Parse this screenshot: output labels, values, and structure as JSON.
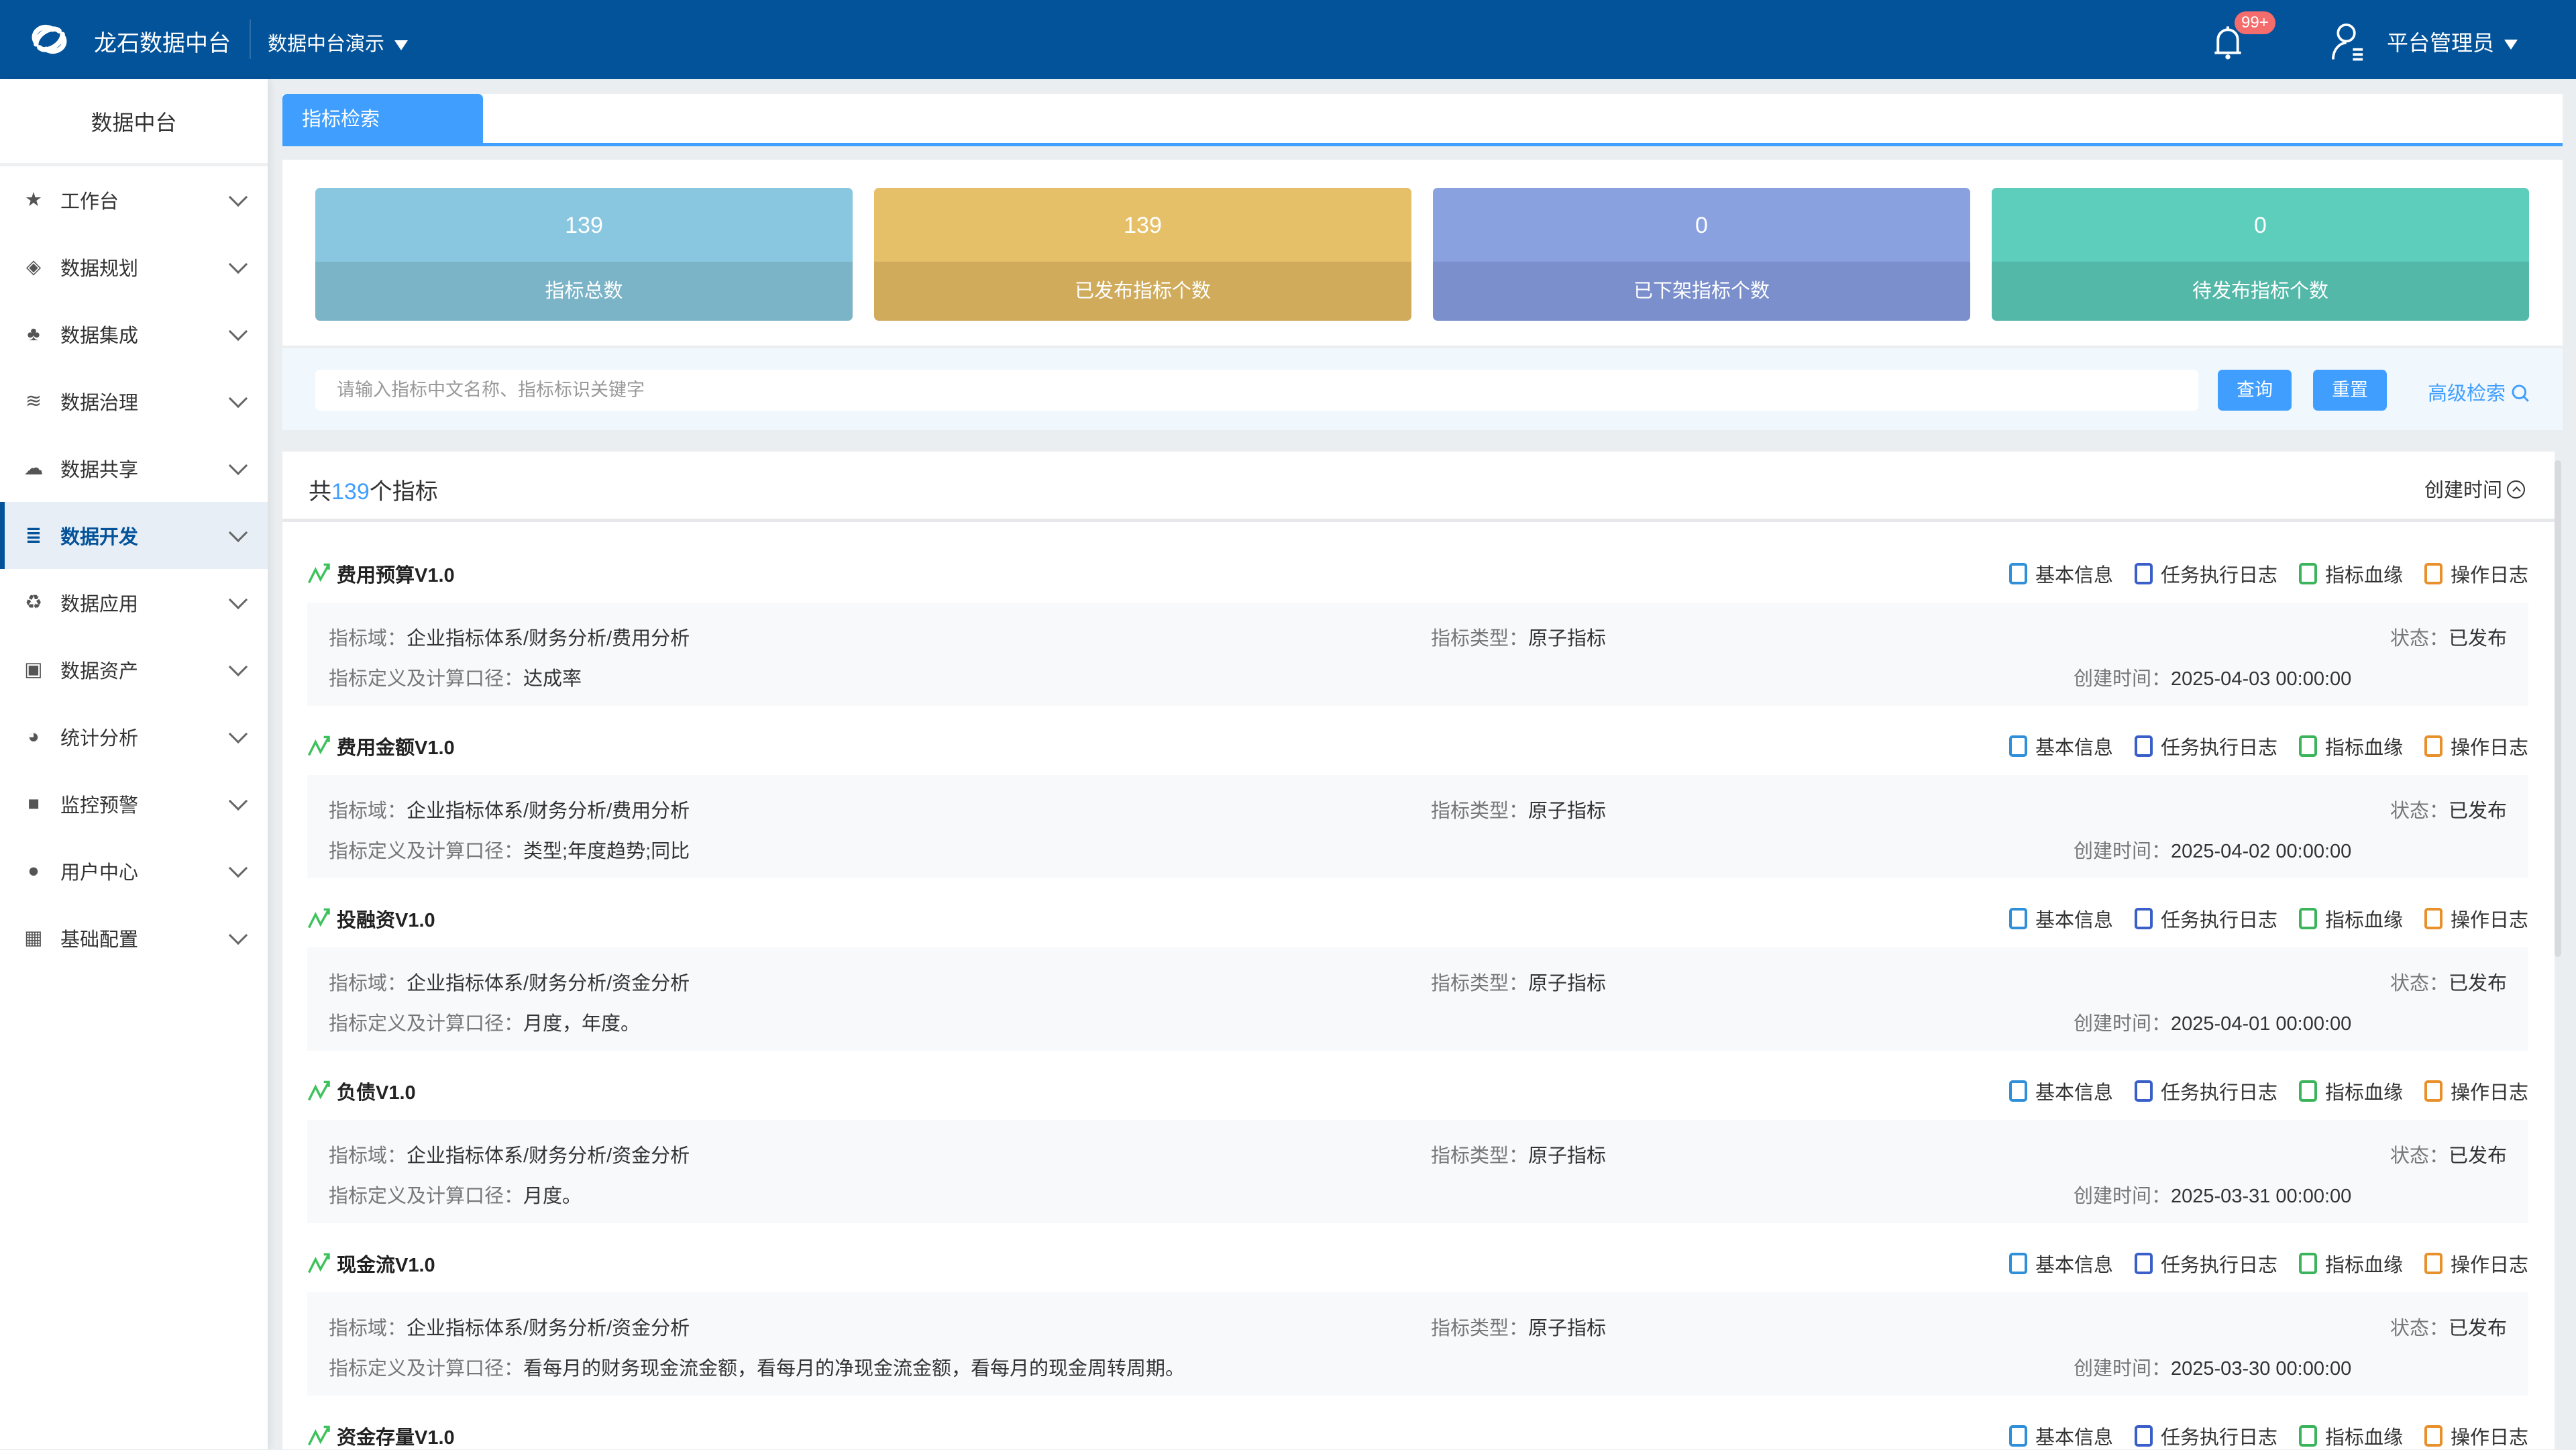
{
  "header": {
    "brand": "龙石数据中台",
    "project": "数据中台演示",
    "notifications_badge": "99+",
    "user": "平台管理员",
    "color": "#03539a"
  },
  "sidebar": {
    "title": "数据中台",
    "items": [
      {
        "label": "工作台",
        "icon": "star-icon"
      },
      {
        "label": "数据规划",
        "icon": "layers-icon"
      },
      {
        "label": "数据集成",
        "icon": "integration-icon"
      },
      {
        "label": "数据治理",
        "icon": "database-icon"
      },
      {
        "label": "数据共享",
        "icon": "cloud-icon"
      },
      {
        "label": "数据开发",
        "icon": "dev-icon",
        "active": true
      },
      {
        "label": "数据应用",
        "icon": "recycle-icon"
      },
      {
        "label": "数据资产",
        "icon": "asset-icon"
      },
      {
        "label": "统计分析",
        "icon": "pie-chart-icon"
      },
      {
        "label": "监控预警",
        "icon": "camera-icon"
      },
      {
        "label": "用户中心",
        "icon": "user-icon"
      },
      {
        "label": "基础配置",
        "icon": "grid-icon"
      }
    ]
  },
  "tabs": [
    {
      "label": "指标检索",
      "active": true
    }
  ],
  "stats": [
    {
      "value": "139",
      "label": "指标总数",
      "top": "#89c7e0",
      "bottom": "#7bb3c7"
    },
    {
      "value": "139",
      "label": "已发布指标个数",
      "top": "#e6c068",
      "bottom": "#cfab5b"
    },
    {
      "value": "0",
      "label": "已下架指标个数",
      "top": "#8aa1e0",
      "bottom": "#7a8fcb"
    },
    {
      "value": "0",
      "label": "待发布指标个数",
      "top": "#5dcdbc",
      "bottom": "#53b8a8"
    }
  ],
  "search": {
    "placeholder": "请输入指标中文名称、指标标识关键字",
    "query": "查询",
    "reset": "重置",
    "advanced": "高级检索"
  },
  "list": {
    "prefix": "共",
    "count": "139",
    "suffix": "个指标",
    "sort_label": "创建时间",
    "actions": [
      "基本信息",
      "任务执行日志",
      "指标血缘",
      "操作日志"
    ],
    "labels": {
      "domain": "指标域：",
      "type": "指标类型：",
      "status": "状态：",
      "def": "指标定义及计算口径：",
      "created": "创建时间："
    },
    "items": [
      {
        "name": "费用预算V1.0",
        "domain": "企业指标体系/财务分析/费用分析",
        "type": "原子指标",
        "status": "已发布",
        "def": "达成率",
        "created": "2025-04-03 00:00:00"
      },
      {
        "name": "费用金额V1.0",
        "domain": "企业指标体系/财务分析/费用分析",
        "type": "原子指标",
        "status": "已发布",
        "def": "类型;年度趋势;同比",
        "created": "2025-04-02 00:00:00"
      },
      {
        "name": "投融资V1.0",
        "domain": "企业指标体系/财务分析/资金分析",
        "type": "原子指标",
        "status": "已发布",
        "def": "月度，年度。",
        "created": "2025-04-01 00:00:00"
      },
      {
        "name": "负债V1.0",
        "domain": "企业指标体系/财务分析/资金分析",
        "type": "原子指标",
        "status": "已发布",
        "def": "月度。",
        "created": "2025-03-31 00:00:00"
      },
      {
        "name": "现金流V1.0",
        "domain": "企业指标体系/财务分析/资金分析",
        "type": "原子指标",
        "status": "已发布",
        "def": "看每月的财务现金流金额，看每月的净现金流金额，看每月的现金周转周期。",
        "created": "2025-03-30 00:00:00"
      },
      {
        "name": "资金存量V1.0"
      }
    ]
  },
  "action_colors": [
    "#2f8fd8",
    "#3a5fc8",
    "#3cb45c",
    "#e8902c"
  ]
}
